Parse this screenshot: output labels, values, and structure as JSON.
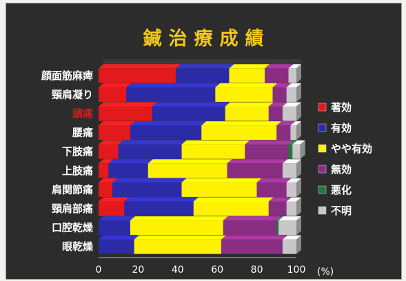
{
  "chart_data": {
    "type": "bar",
    "orientation": "horizontal",
    "stacked": true,
    "normalized_percent": true,
    "title": "鍼治療成績",
    "xlabel": "",
    "unit_label": "(%)",
    "xlim": [
      0,
      100
    ],
    "xticks": [
      "0",
      "20",
      "40",
      "60",
      "80",
      "100"
    ],
    "categories": [
      "顔面筋麻痺",
      "頸肩凝り",
      "頭痛",
      "腰痛",
      "下肢痛",
      "上肢痛",
      "肩関節痛",
      "頸肩部痛",
      "口腔乾燥",
      "眼乾燥"
    ],
    "highlight_category": "頭痛",
    "highlight_color": "#d61d1d",
    "legend_position": "right",
    "series": [
      {
        "name": "著効",
        "color": "#e3191b",
        "values": [
          39,
          14,
          27,
          16,
          10,
          5,
          7,
          13,
          0,
          0
        ]
      },
      {
        "name": "有効",
        "color": "#2b2ba8",
        "values": [
          27,
          45,
          37,
          36,
          32,
          20,
          35,
          35,
          16,
          18
        ]
      },
      {
        "name": "やや有効",
        "color": "#fff200",
        "values": [
          18,
          29,
          22,
          38,
          32,
          40,
          38,
          38,
          47,
          44
        ]
      },
      {
        "name": "無効",
        "color": "#8a2e84",
        "values": [
          12,
          7,
          7,
          7,
          22,
          28,
          15,
          9,
          27,
          31
        ]
      },
      {
        "name": "悪化",
        "color": "#1f7a3c",
        "values": [
          0,
          0,
          0,
          0,
          2,
          0,
          0,
          0,
          1,
          0
        ]
      },
      {
        "name": "不明",
        "color": "#c8c8c8",
        "values": [
          4,
          5,
          7,
          3,
          4,
          7,
          5,
          5,
          9,
          7
        ]
      }
    ]
  }
}
